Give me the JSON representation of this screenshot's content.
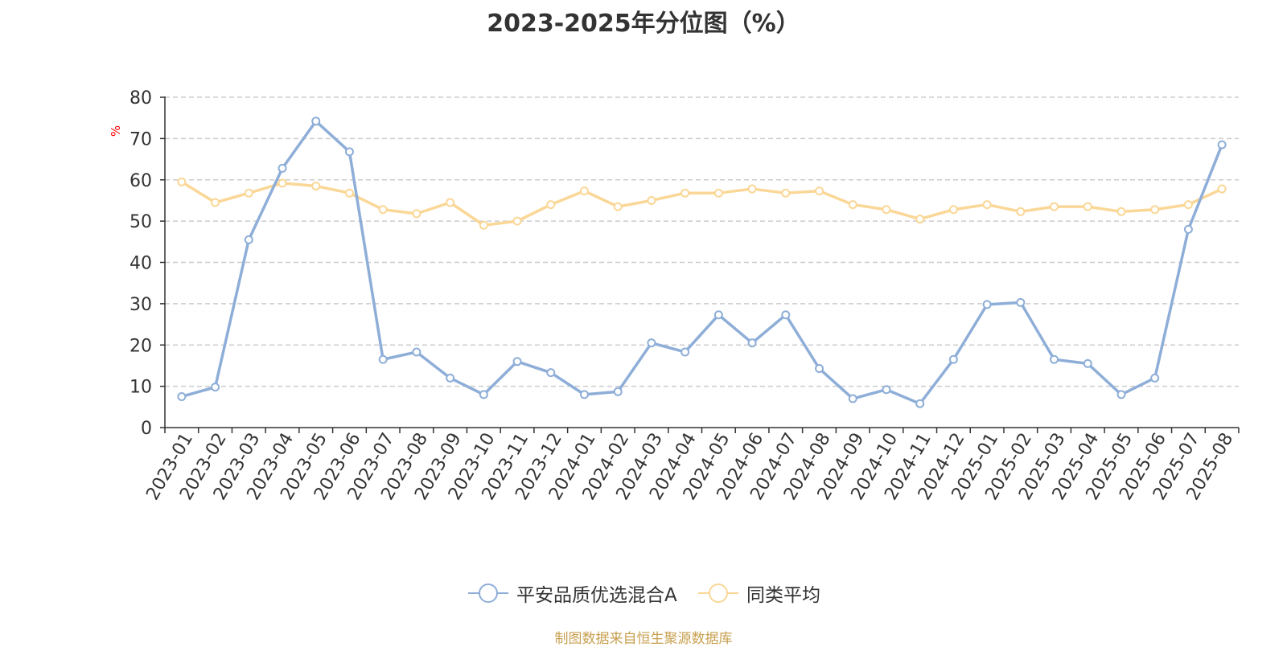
{
  "chart_data": {
    "type": "line",
    "title": "2023-2025年分位图（%）",
    "ylabel": "%",
    "xlabel": "",
    "ylim": [
      0,
      80
    ],
    "yticks": [
      0,
      10,
      20,
      30,
      40,
      50,
      60,
      70,
      80
    ],
    "grid": "horizontal dashed",
    "legend_position": "bottom-center",
    "categories": [
      "2023-01",
      "2023-02",
      "2023-03",
      "2023-04",
      "2023-05",
      "2023-06",
      "2023-07",
      "2023-08",
      "2023-09",
      "2023-10",
      "2023-11",
      "2023-12",
      "2024-01",
      "2024-02",
      "2024-03",
      "2024-04",
      "2024-05",
      "2024-06",
      "2024-07",
      "2024-08",
      "2024-09",
      "2024-10",
      "2024-11",
      "2024-12",
      "2025-01",
      "2025-02",
      "2025-03",
      "2025-04",
      "2025-05",
      "2025-06",
      "2025-07",
      "2025-08"
    ],
    "series": [
      {
        "name": "平安品质优选混合A",
        "color": "#8eaed8",
        "values": [
          7.5,
          9.8,
          45.5,
          62.8,
          74.2,
          66.8,
          16.5,
          18.3,
          12.0,
          8.0,
          16.0,
          13.3,
          8.0,
          8.7,
          20.5,
          18.3,
          27.3,
          20.5,
          27.3,
          14.3,
          7.0,
          9.2,
          5.8,
          16.5,
          29.8,
          30.3,
          16.5,
          15.5,
          8.0,
          12.0,
          48.0,
          68.5
        ]
      },
      {
        "name": "同类平均",
        "color": "#fad796",
        "values": [
          59.5,
          54.5,
          56.8,
          59.2,
          58.5,
          56.8,
          52.8,
          51.8,
          54.5,
          49.0,
          50.0,
          54.0,
          57.3,
          53.5,
          55.0,
          56.8,
          56.8,
          57.8,
          56.8,
          57.3,
          54.0,
          52.8,
          50.5,
          52.8,
          54.0,
          52.3,
          53.5,
          53.5,
          52.3,
          52.8,
          54.0,
          57.8
        ]
      }
    ]
  },
  "source_note": {
    "text": "制图数据来自恒生聚源数据库",
    "color": "#c8a050"
  },
  "colors": {
    "axis": "#333333",
    "grid": "#cccccc",
    "ylabel": "#ff0000"
  }
}
